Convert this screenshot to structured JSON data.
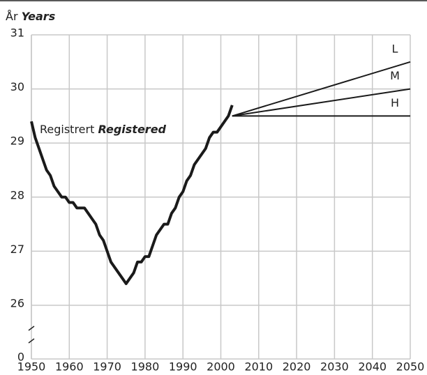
{
  "chart_data": {
    "type": "line",
    "y_title": "År",
    "y_title_en": "Years",
    "xlim": [
      1950,
      2050
    ],
    "xticks": [
      1950,
      1960,
      1970,
      1980,
      1990,
      2000,
      2010,
      2020,
      2030,
      2040,
      2050
    ],
    "ylim": [
      26,
      31
    ],
    "yticks": [
      0,
      26,
      27,
      28,
      29,
      30,
      31
    ],
    "axis_break": true,
    "grid": true,
    "series": [
      {
        "name": "Registrert",
        "name_en": "Registered",
        "color": "#1a1a1a",
        "x": [
          1950,
          1951,
          1952,
          1953,
          1954,
          1955,
          1956,
          1957,
          1958,
          1959,
          1960,
          1961,
          1962,
          1963,
          1964,
          1965,
          1966,
          1967,
          1968,
          1969,
          1970,
          1971,
          1972,
          1973,
          1974,
          1975,
          1976,
          1977,
          1978,
          1979,
          1980,
          1981,
          1982,
          1983,
          1984,
          1985,
          1986,
          1987,
          1988,
          1989,
          1990,
          1991,
          1992,
          1993,
          1994,
          1995,
          1996,
          1997,
          1998,
          1999,
          2000,
          2001,
          2002,
          2003
        ],
        "values": [
          29.4,
          29.1,
          28.9,
          28.7,
          28.5,
          28.4,
          28.2,
          28.1,
          28.0,
          28.0,
          27.9,
          27.9,
          27.8,
          27.8,
          27.8,
          27.7,
          27.6,
          27.5,
          27.3,
          27.2,
          27.0,
          26.8,
          26.7,
          26.6,
          26.5,
          26.4,
          26.5,
          26.6,
          26.8,
          26.8,
          26.9,
          26.9,
          27.1,
          27.3,
          27.4,
          27.5,
          27.5,
          27.7,
          27.8,
          28.0,
          28.1,
          28.3,
          28.4,
          28.6,
          28.7,
          28.8,
          28.9,
          29.1,
          29.2,
          29.2,
          29.3,
          29.4,
          29.5,
          29.7
        ]
      },
      {
        "name": "L",
        "color": "#1a1a1a",
        "x": [
          2003,
          2050
        ],
        "values": [
          29.5,
          30.5
        ]
      },
      {
        "name": "M",
        "color": "#1a1a1a",
        "x": [
          2003,
          2050
        ],
        "values": [
          29.5,
          30.0
        ]
      },
      {
        "name": "H",
        "color": "#1a1a1a",
        "x": [
          2003,
          2050
        ],
        "values": [
          29.5,
          29.5
        ]
      }
    ]
  }
}
